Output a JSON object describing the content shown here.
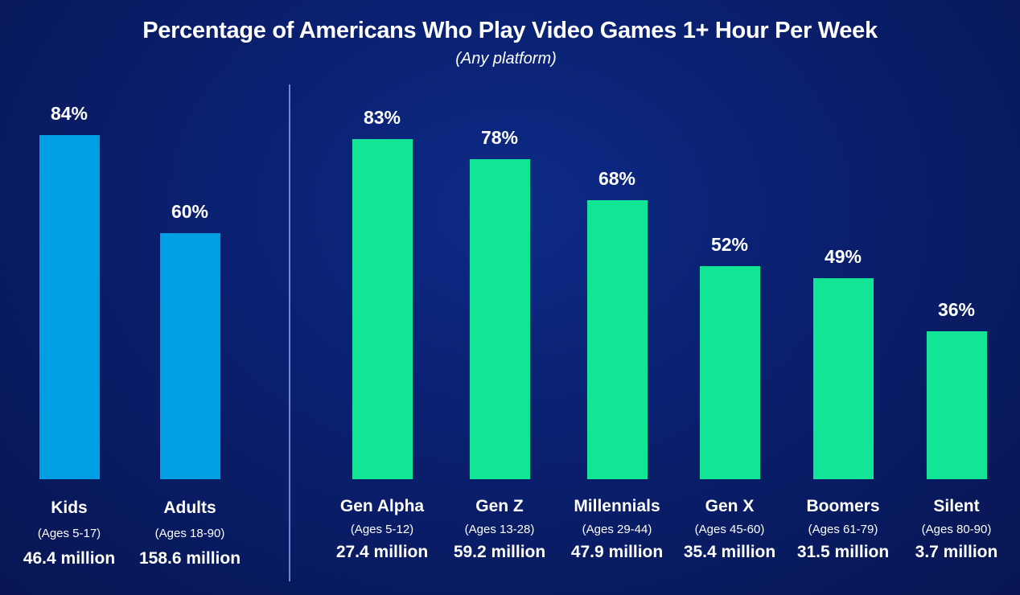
{
  "title": "Percentage of Americans Who Play Video Games 1+ Hour Per Week",
  "subtitle": "(Any platform)",
  "colors": {
    "overall": "#009fe3",
    "generation": "#13e597",
    "background": "#0a1f6e"
  },
  "chart_data": {
    "type": "bar",
    "title": "Percentage of Americans Who Play Video Games 1+ Hour Per Week",
    "subtitle": "(Any platform)",
    "ylim": [
      0,
      100
    ],
    "grid": false,
    "groups": [
      {
        "name": "",
        "color": "#009fe3",
        "categories": [
          "Kids",
          "Adults"
        ],
        "ages": [
          "(Ages 5-17)",
          "(Ages 18-90)"
        ],
        "population": [
          "46.4 million",
          "158.6 million"
        ],
        "values": [
          84,
          60
        ],
        "labels": [
          "84%",
          "60%"
        ]
      },
      {
        "name": "",
        "color": "#13e597",
        "categories": [
          "Gen Alpha",
          "Gen Z",
          "Millennials",
          "Gen X",
          "Boomers",
          "Silent"
        ],
        "ages": [
          "(Ages 5-12)",
          "(Ages 13-28)",
          "(Ages 29-44)",
          "(Ages 45-60)",
          "(Ages 61-79)",
          "(Ages 80-90)"
        ],
        "population": [
          "27.4 million",
          "59.2 million",
          "47.9 million",
          "35.4 million",
          "31.5 million",
          "3.7 million"
        ],
        "values": [
          83,
          78,
          68,
          52,
          49,
          36
        ],
        "labels": [
          "83%",
          "78%",
          "68%",
          "52%",
          "49%",
          "36%"
        ]
      }
    ]
  }
}
